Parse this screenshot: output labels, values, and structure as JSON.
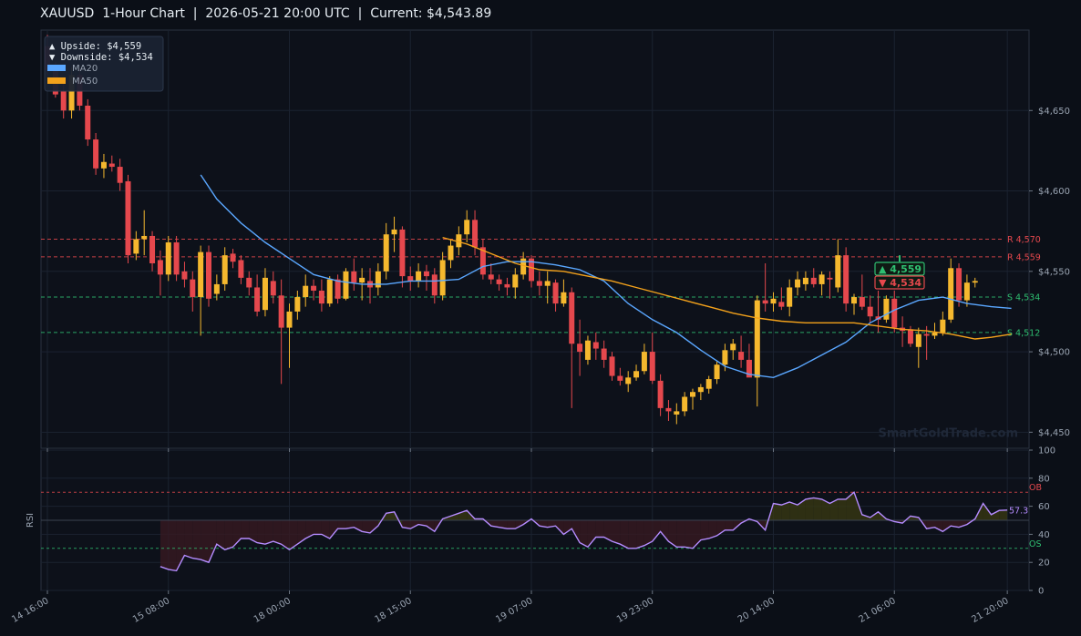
{
  "header": {
    "title": "XAUUSD  1-Hour Chart  |  2026-05-21 20:00 UTC  |  Current: $4,543.89"
  },
  "colors": {
    "bg": "#0b0f17",
    "panel": "#0d111a",
    "grid": "#1b2230",
    "bull": "#f5b82e",
    "bear": "#e5484d",
    "ma20": "#5aa7ff",
    "ma50": "#f4a21b",
    "rsi": "#b58cff",
    "resistance": "#e5484d",
    "support": "#2fbf71"
  },
  "chart_data": [
    {
      "type": "candlestick",
      "ylim": [
        4440,
        4700
      ],
      "yticks": [
        4450,
        4500,
        4550,
        4600,
        4650
      ],
      "ytick_labels": [
        "$4,450",
        "$4,500",
        "$4,550",
        "$4,600",
        "$4,650"
      ],
      "x_range": [
        0,
        120
      ],
      "xticks": [
        0,
        15,
        30,
        45,
        60,
        75,
        90,
        105,
        119
      ],
      "xtick_labels": [
        "14 16:00",
        "15 08:00",
        "18 00:00",
        "18 15:00",
        "19 07:00",
        "19 23:00",
        "20 14:00",
        "21 06:00",
        "21 20:00"
      ],
      "legend": {
        "placement": "top-left",
        "entries": [
          "MA20",
          "MA50"
        ]
      },
      "info_box": {
        "upside": "▲ Upside:   $4,559",
        "downside": "▼ Downside: $4,534"
      },
      "price_tags": [
        {
          "text": "▲ 4,559",
          "value": 4559,
          "color": "#2fbf71"
        },
        {
          "text": "▼ 4,534",
          "value": 4534,
          "color": "#e5484d"
        }
      ],
      "levels": [
        {
          "label": "R 4,570",
          "value": 4570,
          "kind": "resistance"
        },
        {
          "label": "R 4,559",
          "value": 4559,
          "kind": "resistance"
        },
        {
          "label": "S 4,534",
          "value": 4534,
          "kind": "support"
        },
        {
          "label": "S 4,512",
          "value": 4512,
          "kind": "support"
        }
      ],
      "watermark": "SmartGoldTrade.com",
      "candles": [
        [
          4690,
          4697,
          4672,
          4675
        ],
        [
          4675,
          4680,
          4658,
          4660
        ],
        [
          4662,
          4668,
          4645,
          4650
        ],
        [
          4650,
          4677,
          4645,
          4672
        ],
        [
          4672,
          4676,
          4650,
          4653
        ],
        [
          4653,
          4657,
          4628,
          4632
        ],
        [
          4632,
          4636,
          4610,
          4614
        ],
        [
          4614,
          4623,
          4608,
          4618
        ],
        [
          4617,
          4622,
          4612,
          4615
        ],
        [
          4615,
          4620,
          4600,
          4605
        ],
        [
          4606,
          4610,
          4555,
          4560
        ],
        [
          4561,
          4575,
          4557,
          4570
        ],
        [
          4570,
          4588,
          4560,
          4572
        ],
        [
          4572,
          4575,
          4550,
          4555
        ],
        [
          4557,
          4563,
          4535,
          4548
        ],
        [
          4548,
          4572,
          4544,
          4568
        ],
        [
          4568,
          4572,
          4544,
          4548
        ],
        [
          4550,
          4556,
          4540,
          4545
        ],
        [
          4545,
          4550,
          4525,
          4534
        ],
        [
          4534,
          4566,
          4510,
          4562
        ],
        [
          4562,
          4566,
          4528,
          4533
        ],
        [
          4536,
          4548,
          4532,
          4542
        ],
        [
          4542,
          4565,
          4538,
          4560
        ],
        [
          4561,
          4564,
          4552,
          4556
        ],
        [
          4557,
          4560,
          4542,
          4546
        ],
        [
          4546,
          4550,
          4535,
          4540
        ],
        [
          4540,
          4548,
          4522,
          4525
        ],
        [
          4526,
          4552,
          4522,
          4546
        ],
        [
          4544,
          4550,
          4530,
          4535
        ],
        [
          4535,
          4545,
          4480,
          4515
        ],
        [
          4515,
          4530,
          4490,
          4525
        ],
        [
          4525,
          4538,
          4520,
          4534
        ],
        [
          4534,
          4548,
          4528,
          4541
        ],
        [
          4541,
          4545,
          4532,
          4538
        ],
        [
          4538,
          4545,
          4525,
          4530
        ],
        [
          4530,
          4547,
          4528,
          4545
        ],
        [
          4545,
          4548,
          4530,
          4533
        ],
        [
          4533,
          4552,
          4532,
          4550
        ],
        [
          4550,
          4558,
          4538,
          4543
        ],
        [
          4543,
          4552,
          4532,
          4546
        ],
        [
          4544,
          4552,
          4530,
          4540
        ],
        [
          4540,
          4555,
          4535,
          4550
        ],
        [
          4550,
          4580,
          4545,
          4573
        ],
        [
          4573,
          4584,
          4562,
          4576
        ],
        [
          4576,
          4578,
          4540,
          4547
        ],
        [
          4547,
          4553,
          4538,
          4544
        ],
        [
          4544,
          4555,
          4540,
          4550
        ],
        [
          4550,
          4554,
          4538,
          4547
        ],
        [
          4548,
          4552,
          4530,
          4535
        ],
        [
          4535,
          4562,
          4532,
          4557
        ],
        [
          4557,
          4570,
          4552,
          4566
        ],
        [
          4565,
          4578,
          4560,
          4573
        ],
        [
          4573,
          4588,
          4568,
          4582
        ],
        [
          4582,
          4588,
          4560,
          4565
        ],
        [
          4565,
          4570,
          4545,
          4548
        ],
        [
          4548,
          4555,
          4542,
          4545
        ],
        [
          4545,
          4548,
          4538,
          4542
        ],
        [
          4542,
          4546,
          4535,
          4540
        ],
        [
          4540,
          4552,
          4533,
          4548
        ],
        [
          4548,
          4562,
          4545,
          4558
        ],
        [
          4558,
          4560,
          4540,
          4544
        ],
        [
          4544,
          4550,
          4535,
          4541
        ],
        [
          4541,
          4550,
          4530,
          4544
        ],
        [
          4543,
          4545,
          4525,
          4530
        ],
        [
          4530,
          4545,
          4528,
          4537
        ],
        [
          4537,
          4540,
          4465,
          4505
        ],
        [
          4505,
          4520,
          4485,
          4500
        ],
        [
          4495,
          4510,
          4492,
          4507
        ],
        [
          4506,
          4512,
          4495,
          4502
        ],
        [
          4502,
          4507,
          4490,
          4495
        ],
        [
          4497,
          4500,
          4482,
          4485
        ],
        [
          4485,
          4490,
          4479,
          4482
        ],
        [
          4480,
          4488,
          4475,
          4484
        ],
        [
          4484,
          4492,
          4482,
          4488
        ],
        [
          4488,
          4505,
          4486,
          4500
        ],
        [
          4500,
          4512,
          4480,
          4482
        ],
        [
          4482,
          4486,
          4460,
          4465
        ],
        [
          4465,
          4470,
          4457,
          4463
        ],
        [
          4461,
          4468,
          4455,
          4463
        ],
        [
          4463,
          4475,
          4460,
          4472
        ],
        [
          4472,
          4477,
          4464,
          4475
        ],
        [
          4475,
          4480,
          4470,
          4478
        ],
        [
          4477,
          4485,
          4474,
          4483
        ],
        [
          4483,
          4494,
          4480,
          4492
        ],
        [
          4492,
          4505,
          4488,
          4501
        ],
        [
          4501,
          4508,
          4495,
          4505
        ],
        [
          4500,
          4510,
          4490,
          4495
        ],
        [
          4495,
          4505,
          4485,
          4484
        ],
        [
          4484,
          4535,
          4466,
          4532
        ],
        [
          4532,
          4555,
          4525,
          4530
        ],
        [
          4530,
          4537,
          4525,
          4533
        ],
        [
          4531,
          4540,
          4526,
          4528
        ],
        [
          4528,
          4545,
          4522,
          4540
        ],
        [
          4540,
          4550,
          4535,
          4545
        ],
        [
          4542,
          4550,
          4538,
          4546
        ],
        [
          4546,
          4552,
          4540,
          4542
        ],
        [
          4542,
          4550,
          4535,
          4548
        ],
        [
          4546,
          4550,
          4533,
          4545
        ],
        [
          4540,
          4570,
          4537,
          4560
        ],
        [
          4560,
          4565,
          4525,
          4530
        ],
        [
          4530,
          4536,
          4523,
          4534
        ],
        [
          4534,
          4548,
          4526,
          4528
        ],
        [
          4528,
          4535,
          4518,
          4522
        ],
        [
          4522,
          4538,
          4512,
          4520
        ],
        [
          4520,
          4535,
          4518,
          4533
        ],
        [
          4533,
          4538,
          4512,
          4515
        ],
        [
          4515,
          4522,
          4503,
          4513
        ],
        [
          4514,
          4516,
          4503,
          4505
        ],
        [
          4503,
          4515,
          4490,
          4511
        ],
        [
          4511,
          4516,
          4495,
          4510
        ],
        [
          4510,
          4518,
          4508,
          4512
        ],
        [
          4512,
          4525,
          4510,
          4520
        ],
        [
          4520,
          4558,
          4518,
          4552
        ],
        [
          4552,
          4555,
          4528,
          4532
        ],
        [
          4532,
          4548,
          4528,
          4543
        ],
        [
          4543,
          4546,
          4540,
          4544
        ]
      ],
      "ma20": {
        "name": "MA20",
        "x": [
          19,
          21,
          24,
          27,
          30,
          33,
          36,
          39,
          42,
          45,
          48,
          51,
          54,
          57,
          60,
          63,
          66,
          69,
          72,
          75,
          78,
          81,
          84,
          87,
          90,
          93,
          96,
          99,
          102,
          105,
          108,
          111,
          114,
          117,
          119.5
        ],
        "y": [
          4610,
          4595,
          4580,
          4568,
          4558,
          4548,
          4544,
          4542,
          4542,
          4544,
          4544,
          4545,
          4553,
          4556,
          4556,
          4554,
          4551,
          4544,
          4530,
          4520,
          4512,
          4501,
          4491,
          4486,
          4484,
          4490,
          4498,
          4506,
          4518,
          4526,
          4532,
          4534,
          4530,
          4528,
          4527
        ]
      },
      "ma50": {
        "name": "MA50",
        "x": [
          49,
          52,
          55,
          58,
          61,
          64,
          67,
          70,
          73,
          76,
          79,
          82,
          85,
          88,
          91,
          94,
          97,
          100,
          103,
          106,
          109,
          112,
          115,
          117,
          119.5
        ],
        "y": [
          4571,
          4567,
          4561,
          4555,
          4551,
          4550,
          4547,
          4544,
          4540,
          4536,
          4532,
          4528,
          4524,
          4521,
          4519,
          4518,
          4518,
          4518,
          4516,
          4514,
          4513,
          4511,
          4508,
          4509,
          4511
        ]
      }
    },
    {
      "type": "line",
      "ylabel": "RSI",
      "ylim": [
        0,
        100
      ],
      "yticks": [
        0,
        20,
        40,
        60,
        80,
        100
      ],
      "ytick_labels": [
        "0",
        "20",
        "40",
        "60",
        "80",
        "100"
      ],
      "overbought": {
        "label": "OB",
        "value": 70
      },
      "oversold": {
        "label": "OS",
        "value": 30
      },
      "midline": 50,
      "last_label": "57.3",
      "series": [
        {
          "name": "RSI",
          "x": [
            14,
            15,
            16,
            17,
            18,
            19,
            20,
            21,
            22,
            23,
            24,
            25,
            26,
            27,
            28,
            29,
            30,
            31,
            32,
            33,
            34,
            35,
            36,
            37,
            38,
            39,
            40,
            41,
            42,
            43,
            44,
            45,
            46,
            47,
            48,
            49,
            50,
            51,
            52,
            53,
            54,
            55,
            56,
            57,
            58,
            59,
            60,
            61,
            62,
            63,
            64,
            65,
            66,
            67,
            68,
            69,
            70,
            71,
            72,
            73,
            74,
            75,
            76,
            77,
            78,
            79,
            80,
            81,
            82,
            83,
            84,
            85,
            86,
            87,
            88,
            89,
            90,
            91,
            92,
            93,
            94,
            95,
            96,
            97,
            98,
            99,
            100,
            101,
            102,
            103,
            104,
            105,
            106,
            107,
            108,
            109,
            110,
            111,
            112,
            113,
            114,
            115,
            116,
            117,
            118,
            119
          ],
          "y": [
            17,
            15,
            14,
            25,
            23,
            22,
            20,
            33,
            29,
            31,
            37,
            37,
            34,
            33,
            35,
            33,
            29,
            33,
            37,
            40,
            40,
            37,
            44,
            44,
            45,
            42,
            41,
            46,
            55,
            56,
            45,
            44,
            47,
            46,
            42,
            51,
            53,
            55,
            57,
            51,
            51,
            46,
            45,
            44,
            44,
            47,
            51,
            46,
            45,
            46,
            40,
            44,
            34,
            31,
            38,
            38,
            35,
            33,
            30,
            30,
            32,
            35,
            42,
            35,
            31,
            31,
            30,
            36,
            37,
            39,
            43,
            43,
            48,
            51,
            49,
            43,
            62,
            61,
            63,
            61,
            65,
            66,
            65,
            62,
            65,
            65,
            70,
            54,
            52,
            56,
            51,
            49,
            48,
            53,
            52,
            44,
            45,
            42,
            46,
            45,
            47,
            51,
            62,
            54,
            57,
            57.3
          ]
        }
      ]
    }
  ]
}
